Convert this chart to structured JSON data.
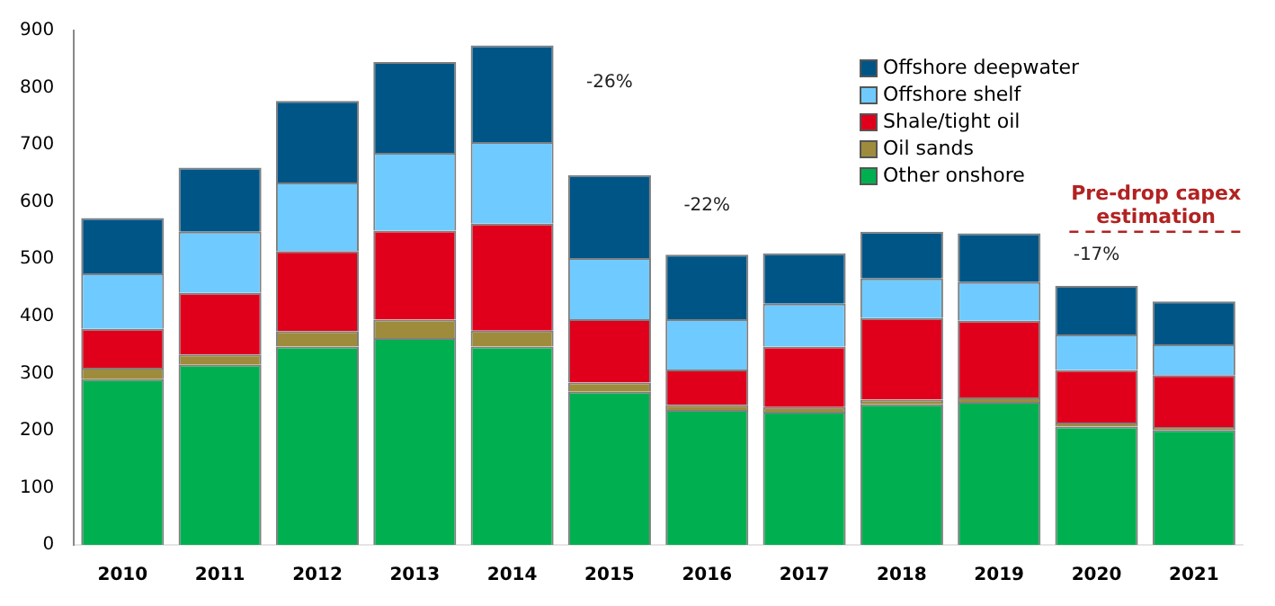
{
  "chart_data": {
    "type": "bar",
    "stacked": true,
    "categories": [
      "2010",
      "2011",
      "2012",
      "2013",
      "2014",
      "2015",
      "2016",
      "2017",
      "2018",
      "2019",
      "2020",
      "2021"
    ],
    "series": [
      {
        "name": "Other onshore",
        "color": "#00b050",
        "values": [
          290,
          315,
          347,
          362,
          347,
          268,
          236,
          233,
          246,
          250,
          207,
          201
        ]
      },
      {
        "name": "Oil sands",
        "color": "#9e8c3c",
        "values": [
          20,
          18,
          27,
          32,
          28,
          16,
          9,
          8,
          8,
          8,
          7,
          5
        ]
      },
      {
        "name": "Shale/tight oil",
        "color": "#e0001b",
        "values": [
          68,
          108,
          140,
          156,
          187,
          111,
          62,
          106,
          143,
          134,
          92,
          91
        ]
      },
      {
        "name": "Offshore shelf",
        "color": "#6fcbff",
        "values": [
          97,
          107,
          120,
          136,
          143,
          107,
          88,
          75,
          69,
          68,
          62,
          54
        ]
      },
      {
        "name": "Offshore deepwater",
        "color": "#005587",
        "values": [
          97,
          112,
          143,
          159,
          169,
          145,
          113,
          88,
          82,
          85,
          85,
          75
        ]
      }
    ],
    "ylim": [
      0,
      900
    ],
    "yticks": [
      0,
      100,
      200,
      300,
      400,
      500,
      600,
      700,
      800,
      900
    ],
    "grid": false,
    "legend": "top right",
    "ref_lines": [
      {
        "axis": "y",
        "value": 548,
        "label": "Pre-drop capex estimation",
        "color": "#b22222",
        "line_style": "dashed"
      }
    ],
    "annotations": [
      "-26%",
      "-22%",
      "-17%"
    ]
  }
}
